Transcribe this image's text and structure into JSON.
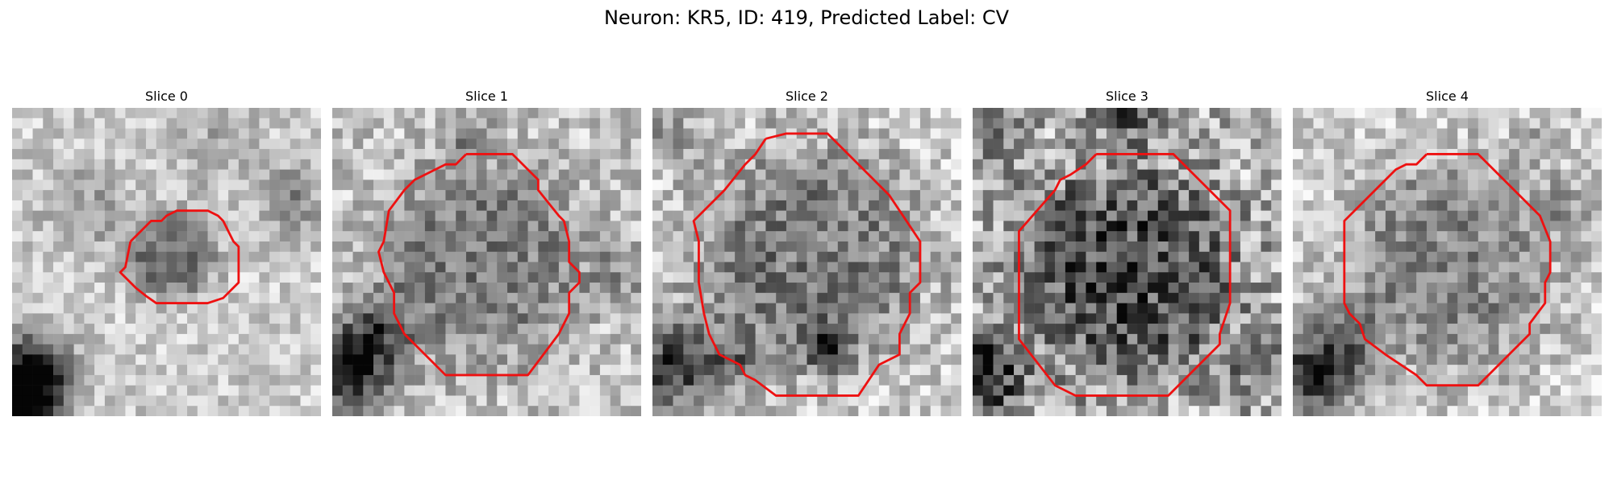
{
  "figure": {
    "title": "Neuron: KR5, ID: 419, Predicted Label: CV"
  },
  "panels": [
    {
      "title": "Slice 0"
    },
    {
      "title": "Slice 1"
    },
    {
      "title": "Slice 2"
    },
    {
      "title": "Slice 3"
    },
    {
      "title": "Slice 4"
    }
  ],
  "colors": {
    "contour": "#ee1111",
    "background": "#ffffff"
  }
}
